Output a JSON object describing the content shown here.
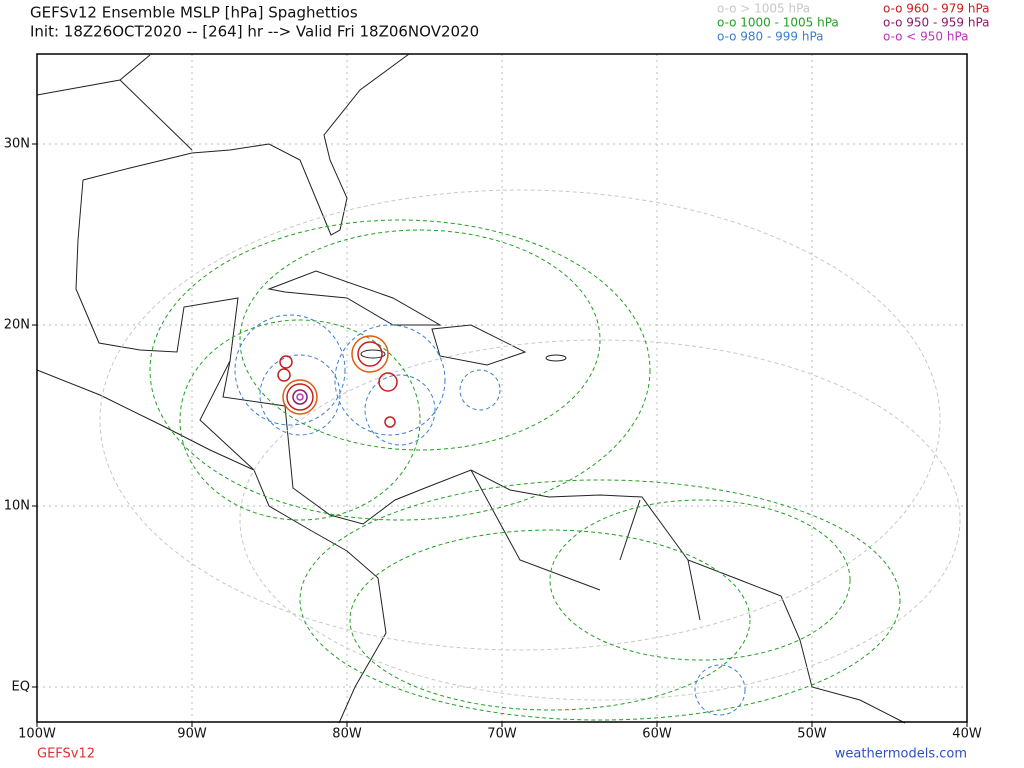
{
  "header": {
    "title": "GEFSv12 Ensemble MSLP [hPa] Spaghettios",
    "subtitle": "Init: 18Z26OCT2020 -- [264] hr --> Valid Fri 18Z06NOV2020"
  },
  "legend": [
    {
      "label": "o-o > 1005 hPa",
      "color": "#c8c8c8"
    },
    {
      "label": "o-o 1000 - 1005 hPa",
      "color": "#22a022"
    },
    {
      "label": "o-o 980 - 999 hPa",
      "color": "#3a7fd0"
    },
    {
      "label": "o-o 960 - 979 hPa",
      "color": "#c81e1e"
    },
    {
      "label": "o-o 950 - 959 hPa",
      "color": "#8a1a6a"
    },
    {
      "label": "o-o < 950 hPa",
      "color": "#c030c0"
    }
  ],
  "map": {
    "lon_labels": [
      "100W",
      "90W",
      "80W",
      "70W",
      "60W",
      "50W",
      "40W"
    ],
    "lat_labels": [
      "30N",
      "20N",
      "10N",
      "EQ"
    ]
  },
  "footer": {
    "model": "GEFSv12",
    "site": "weathermodels.com"
  }
}
